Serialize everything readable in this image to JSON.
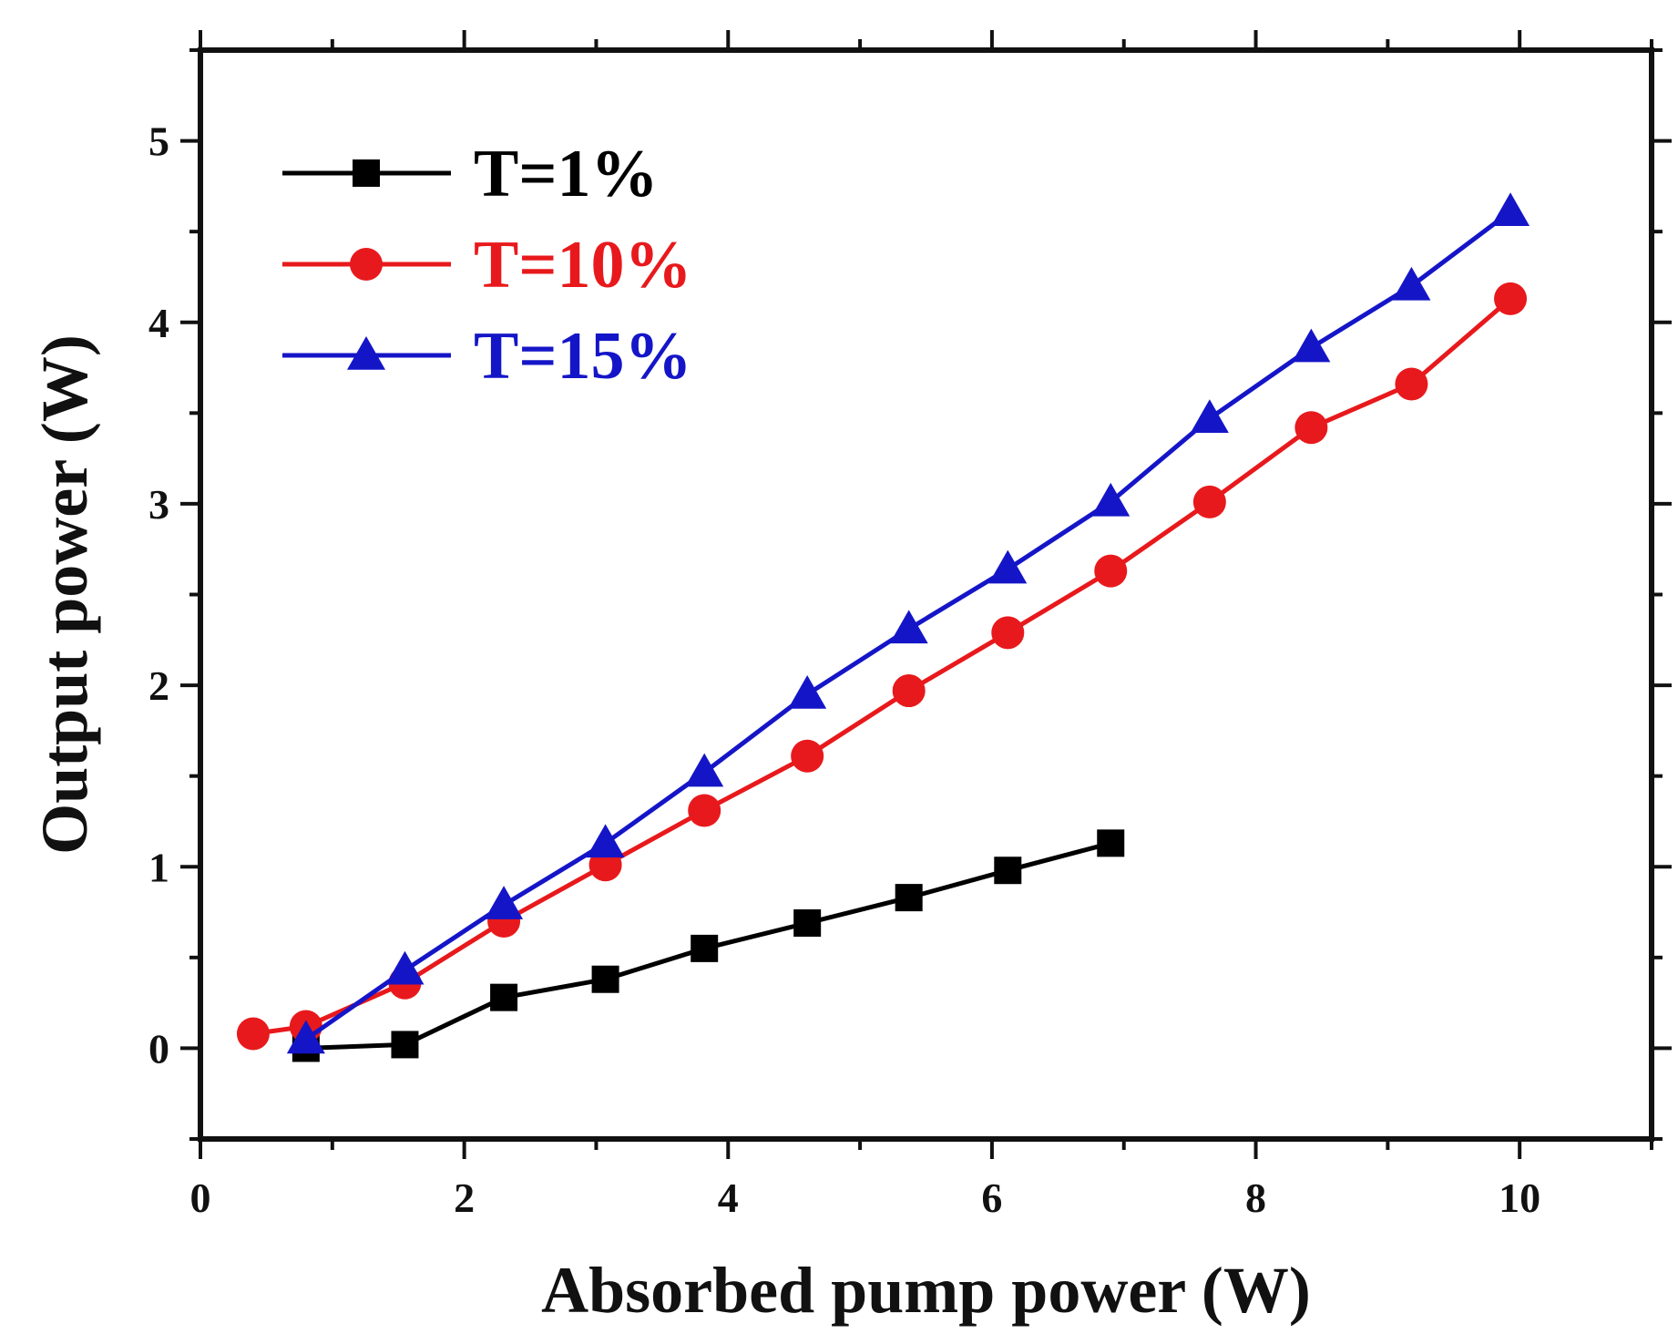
{
  "chart_data": {
    "type": "line",
    "title": "",
    "xlabel": "Absorbed pump power (W)",
    "ylabel": "Output power (W)",
    "xlim": [
      0,
      11
    ],
    "ylim": [
      -0.5,
      5.5
    ],
    "x_ticks": [
      0,
      2,
      4,
      6,
      8,
      10
    ],
    "y_ticks": [
      0,
      1,
      2,
      3,
      4,
      5
    ],
    "x_minor_step": 1,
    "y_minor_step": 0.5,
    "grid": false,
    "legend_position": "top-left",
    "series": [
      {
        "name": "T=1%",
        "color": "#000000",
        "marker": "square",
        "x": [
          0.8,
          1.55,
          2.3,
          3.07,
          3.82,
          4.6,
          5.37,
          6.12,
          6.9
        ],
        "y": [
          0.0,
          0.02,
          0.28,
          0.38,
          0.55,
          0.69,
          0.83,
          0.98,
          1.13
        ]
      },
      {
        "name": "T=10%",
        "color": "#e8191c",
        "marker": "circle",
        "x": [
          0.4,
          0.8,
          1.55,
          2.3,
          3.07,
          3.82,
          4.6,
          5.37,
          6.12,
          6.9,
          7.65,
          8.42,
          9.18,
          9.93
        ],
        "y": [
          0.08,
          0.12,
          0.36,
          0.7,
          1.01,
          1.31,
          1.61,
          1.97,
          2.29,
          2.63,
          3.01,
          3.42,
          3.66,
          4.13
        ]
      },
      {
        "name": "T=15%",
        "color": "#1515c8",
        "marker": "triangle",
        "x": [
          0.8,
          1.55,
          2.3,
          3.07,
          3.82,
          4.6,
          5.37,
          6.12,
          6.9,
          7.65,
          8.42,
          9.18,
          9.93
        ],
        "y": [
          0.05,
          0.43,
          0.79,
          1.13,
          1.52,
          1.95,
          2.31,
          2.64,
          3.01,
          3.47,
          3.86,
          4.2,
          4.61
        ]
      }
    ]
  }
}
